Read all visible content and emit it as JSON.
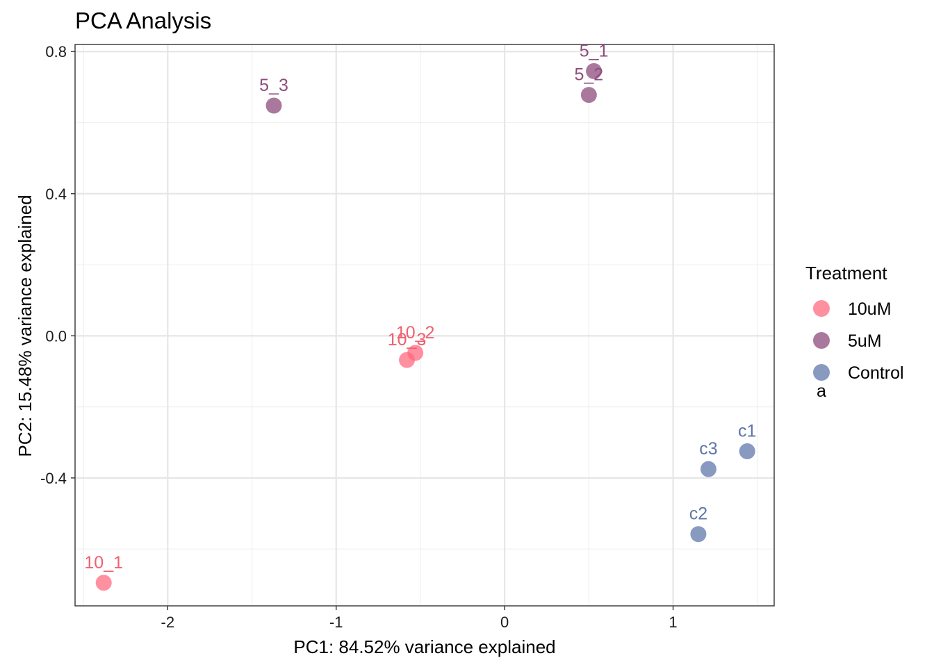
{
  "chart_data": {
    "type": "scatter",
    "title": "PCA Analysis",
    "xlabel": "PC1: 84.52% variance explained",
    "ylabel": "PC2: 15.48% variance explained",
    "xlim": [
      -2.55,
      1.6
    ],
    "ylim": [
      -0.76,
      0.82
    ],
    "x_ticks": [
      -2,
      -1,
      0,
      1
    ],
    "x_tick_labels": [
      "-2",
      "-1",
      "0",
      "1"
    ],
    "y_ticks": [
      -0.4,
      0.0,
      0.4,
      0.8
    ],
    "y_tick_labels": [
      "-0.4",
      "0.0",
      "0.4",
      "0.8"
    ],
    "grid": true,
    "legend": {
      "title": "Treatment",
      "placement": "right",
      "sample_glyph": "a"
    },
    "series": [
      {
        "name": "10uM",
        "color": "#F8766D",
        "point_color": "#FF6B7F",
        "label_color": "#F0606F",
        "points": [
          {
            "label": "10_1",
            "x": -2.38,
            "y": -0.695
          },
          {
            "label": "10_2",
            "x": -0.53,
            "y": -0.048
          },
          {
            "label": "10_3",
            "x": -0.58,
            "y": -0.068
          }
        ]
      },
      {
        "name": "5uM",
        "color": "#8E4B7C",
        "point_color": "#8E4B7C",
        "label_color": "#8E4B7C",
        "points": [
          {
            "label": "5_1",
            "x": 0.53,
            "y": 0.745
          },
          {
            "label": "5_2",
            "x": 0.5,
            "y": 0.678
          },
          {
            "label": "5_3",
            "x": -1.37,
            "y": 0.648
          }
        ]
      },
      {
        "name": "Control",
        "color": "#5E77A8",
        "point_color": "#6078AB",
        "label_color": "#5E77A8",
        "points": [
          {
            "label": "c1",
            "x": 1.44,
            "y": -0.325
          },
          {
            "label": "c2",
            "x": 1.15,
            "y": -0.558
          },
          {
            "label": "c3",
            "x": 1.21,
            "y": -0.375
          }
        ]
      }
    ]
  }
}
